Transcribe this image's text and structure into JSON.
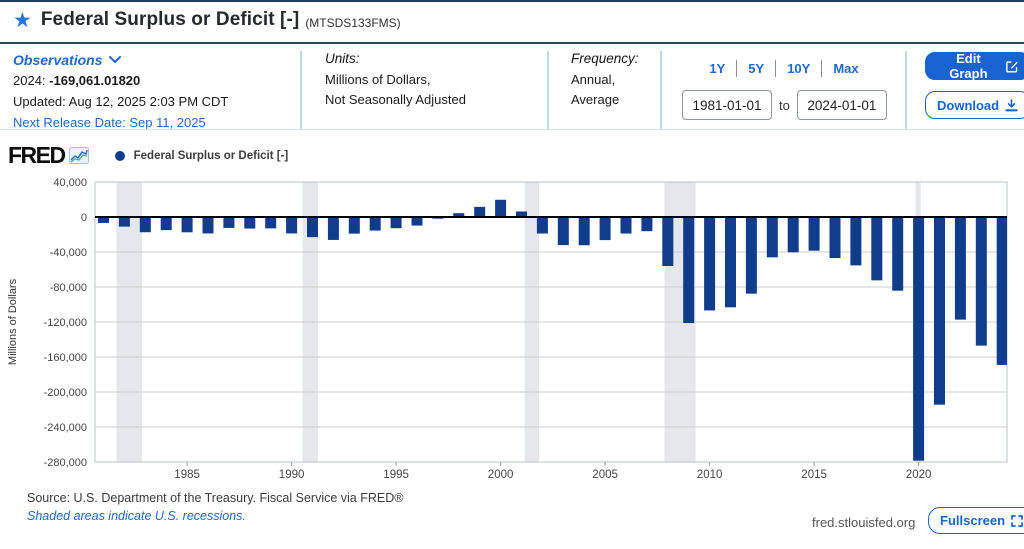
{
  "header": {
    "title": "Federal Surplus or Deficit [-]",
    "series_id": "(MTSDS133FMS)"
  },
  "observations": {
    "label": "Observations",
    "latest_period": "2024:",
    "latest_value": "-169,061.01820",
    "updated": "Updated: Aug 12, 2025 2:03 PM CDT",
    "next_release": "Next Release Date: Sep 11, 2025"
  },
  "units": {
    "label": "Units:",
    "line1": "Millions of Dollars,",
    "line2": "Not Seasonally Adjusted"
  },
  "frequency": {
    "label": "Frequency:",
    "line1": "Annual,",
    "line2": "Average"
  },
  "range_controls": {
    "presets": [
      "1Y",
      "5Y",
      "10Y",
      "Max"
    ],
    "start_date": "1981-01-01",
    "to_label": "to",
    "end_date": "2024-01-01"
  },
  "actions": {
    "edit_graph": "Edit Graph",
    "download": "Download",
    "fullscreen": "Fullscreen"
  },
  "legend": {
    "logo_text": "FRED",
    "series_label": "Federal Surplus or Deficit [-]"
  },
  "footer": {
    "source": "Source: U.S. Department of the Treasury. Fiscal Service via FRED®",
    "recession_note": "Shaded areas indicate U.S. recessions.",
    "site": "fred.stlouisfed.org"
  },
  "colors": {
    "bar_navy": "#0f3d8c",
    "link_blue": "#2068cf",
    "button_blue": "#1764d0",
    "recession_band": "#e4e8ec",
    "grid_gray": "#cccccc",
    "plot_border": "#b6c4d0",
    "zero_line": "#000000",
    "axis_text": "#454545"
  },
  "chart_data": {
    "type": "bar",
    "title": "Federal Surplus or Deficit [-]",
    "ylabel": "Millions of Dollars",
    "ylim": [
      -280000,
      40000
    ],
    "ytick_step": 40000,
    "grid": true,
    "legend_position": "top-left",
    "xticks": [
      1985,
      1990,
      1995,
      2000,
      2005,
      2010,
      2015,
      2020
    ],
    "years": [
      1981,
      1982,
      1983,
      1984,
      1985,
      1986,
      1987,
      1988,
      1989,
      1990,
      1991,
      1992,
      1993,
      1994,
      1995,
      1996,
      1997,
      1998,
      1999,
      2000,
      2001,
      2002,
      2003,
      2004,
      2005,
      2006,
      2007,
      2008,
      2009,
      2010,
      2011,
      2012,
      2013,
      2014,
      2015,
      2016,
      2017,
      2018,
      2019,
      2020,
      2021,
      2022,
      2023,
      2024
    ],
    "values": [
      -6800,
      -11000,
      -17400,
      -15000,
      -17500,
      -18800,
      -12500,
      -13200,
      -13000,
      -18800,
      -23000,
      -26200,
      -19000,
      -15500,
      -12800,
      -9800,
      -1900,
      4400,
      11600,
      19700,
      6300,
      -18900,
      -32100,
      -32300,
      -26400,
      -18900,
      -16200,
      -56000,
      -121200,
      -106800,
      -103200,
      -87600,
      -46100,
      -40400,
      -38500,
      -46900,
      -55300,
      -72400,
      -84200,
      -278500,
      -214500,
      -117300,
      -147000,
      -169061.0182
    ],
    "recessions": [
      [
        1981.62,
        1982.84
      ],
      [
        1990.52,
        1991.26
      ],
      [
        2001.15,
        2001.84
      ],
      [
        2007.84,
        2009.33
      ],
      [
        2019.85,
        2020.1
      ]
    ],
    "bar_color": "#0f3d8c"
  }
}
